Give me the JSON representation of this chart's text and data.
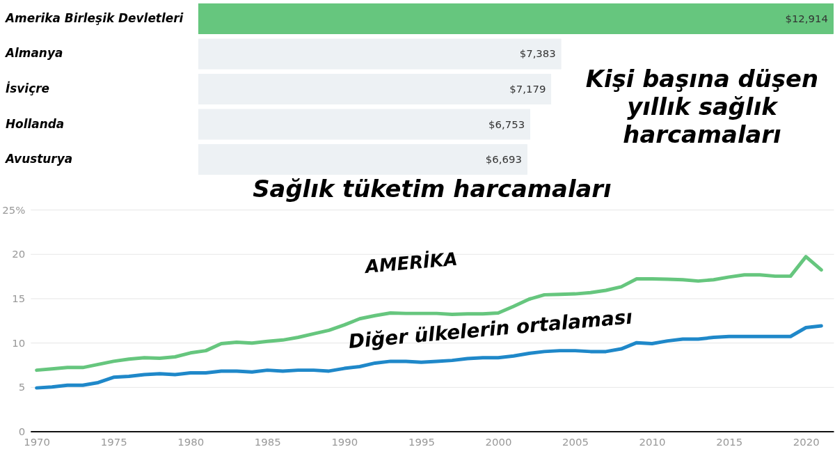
{
  "chart_data": [
    {
      "type": "bar",
      "orientation": "horizontal",
      "title": "Kişi başına düşen yıllık sağlık harcamaları",
      "categories": [
        "Amerika Birleşik Devletleri",
        "Almanya",
        "İsviçre",
        "Hollanda",
        "Avusturya"
      ],
      "values": [
        12914,
        7383,
        7179,
        6753,
        6693
      ],
      "colors": [
        "#66c67e",
        "#edf1f4",
        "#edf1f4",
        "#edf1f4",
        "#edf1f4"
      ],
      "value_labels": [
        "$12,914",
        "$7,383",
        "$7,179",
        "$6,753",
        "$6,693"
      ],
      "tick_labels": "y"
    },
    {
      "type": "line",
      "title": "Sağlık tüketim harcamaları",
      "x": [
        1970,
        1971,
        1972,
        1973,
        1974,
        1975,
        1976,
        1977,
        1978,
        1979,
        1980,
        1981,
        1982,
        1983,
        1984,
        1985,
        1986,
        1987,
        1988,
        1989,
        1990,
        1991,
        1992,
        1993,
        1994,
        1995,
        1996,
        1997,
        1998,
        1999,
        2000,
        2001,
        2002,
        2003,
        2004,
        2005,
        2006,
        2007,
        2008,
        2009,
        2010,
        2011,
        2012,
        2013,
        2014,
        2015,
        2016,
        2017,
        2018,
        2019,
        2020,
        2021
      ],
      "series": [
        {
          "name": "AMERİKA",
          "color": "#66c67e",
          "values": [
            6.9,
            7.05,
            7.2,
            7.2,
            7.55,
            7.9,
            8.15,
            8.3,
            8.25,
            8.4,
            8.85,
            9.1,
            9.9,
            10.05,
            9.95,
            10.15,
            10.3,
            10.6,
            11.0,
            11.4,
            12.0,
            12.7,
            13.05,
            13.35,
            13.3,
            13.3,
            13.3,
            13.2,
            13.25,
            13.25,
            13.35,
            14.1,
            14.9,
            15.4,
            15.45,
            15.5,
            15.65,
            15.9,
            16.3,
            17.2,
            17.2,
            17.15,
            17.1,
            16.95,
            17.1,
            17.4,
            17.65,
            17.65,
            17.5,
            17.5,
            19.7,
            18.2
          ]
        },
        {
          "name": "Diğer ülkelerin ortalaması",
          "color": "#1f88c9",
          "values": [
            4.9,
            5.0,
            5.2,
            5.2,
            5.5,
            6.1,
            6.2,
            6.4,
            6.5,
            6.4,
            6.6,
            6.6,
            6.8,
            6.8,
            6.7,
            6.9,
            6.8,
            6.9,
            6.9,
            6.8,
            7.1,
            7.3,
            7.7,
            7.9,
            7.9,
            7.8,
            7.9,
            8.0,
            8.2,
            8.3,
            8.3,
            8.5,
            8.8,
            9.0,
            9.1,
            9.1,
            9.0,
            9.0,
            9.3,
            10.0,
            9.9,
            10.2,
            10.4,
            10.4,
            10.6,
            10.7,
            10.7,
            10.7,
            10.7,
            10.7,
            11.7,
            11.9
          ]
        }
      ],
      "xlim": [
        1969.6,
        2021.8
      ],
      "xticks": [
        1970,
        1975,
        1980,
        1985,
        1990,
        1995,
        2000,
        2005,
        2010,
        2015,
        2020
      ],
      "ylim": [
        0,
        25
      ],
      "yticks": [
        0,
        5,
        10,
        15,
        20,
        {
          "value": 25,
          "label": "25%"
        }
      ],
      "grid": "y",
      "marker": "none",
      "line_style": "solid"
    }
  ]
}
